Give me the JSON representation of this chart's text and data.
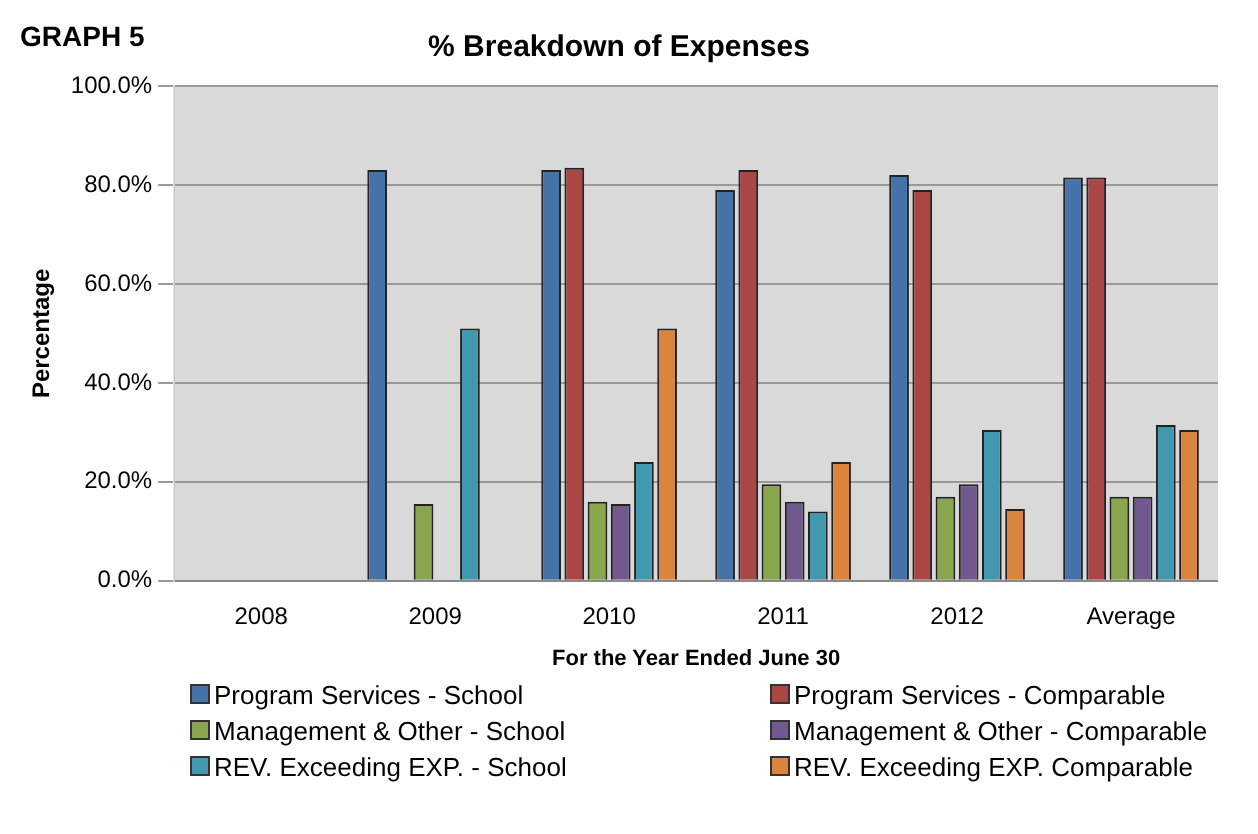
{
  "chart_data": {
    "type": "bar",
    "title": "% Breakdown of Expenses",
    "xlabel": "For the Year Ended June 30",
    "ylabel": "Percentage",
    "annotations": [
      "GRAPH 5"
    ],
    "categories": [
      "2008",
      "2009",
      "2010",
      "2011",
      "2012",
      "Average"
    ],
    "series": [
      {
        "name": "Program Services - School",
        "color": "#4572a7",
        "values": [
          0,
          83,
          83,
          79,
          82,
          81.5
        ]
      },
      {
        "name": "Program Services - Comparable",
        "color": "#aa4643",
        "values": [
          0,
          0,
          83.5,
          83,
          79,
          81.5
        ]
      },
      {
        "name": "Management & Other - School",
        "color": "#89a54e",
        "values": [
          0,
          15.5,
          16,
          19.5,
          17,
          17
        ]
      },
      {
        "name": "Management & Other - Comparable",
        "color": "#71588f",
        "values": [
          0,
          0,
          15.5,
          16,
          19.5,
          17
        ]
      },
      {
        "name": "REV. Exceeding EXP. - School",
        "color": "#4198af",
        "values": [
          0,
          51,
          24,
          14,
          30.5,
          31.5
        ]
      },
      {
        "name": "REV. Exceeding EXP. Comparable",
        "color": "#db843d",
        "values": [
          0,
          0,
          51,
          24,
          14.5,
          30.5
        ]
      }
    ],
    "ylim": [
      0,
      100
    ],
    "yticks": [
      {
        "value": 0,
        "label": "0.0%"
      },
      {
        "value": 20,
        "label": "20.0%"
      },
      {
        "value": 40,
        "label": "40.0%"
      },
      {
        "value": 60,
        "label": "60.0%"
      },
      {
        "value": 80,
        "label": "80.0%"
      },
      {
        "value": 100,
        "label": "100.0%"
      }
    ],
    "grid": "y",
    "legend": "bottom"
  }
}
